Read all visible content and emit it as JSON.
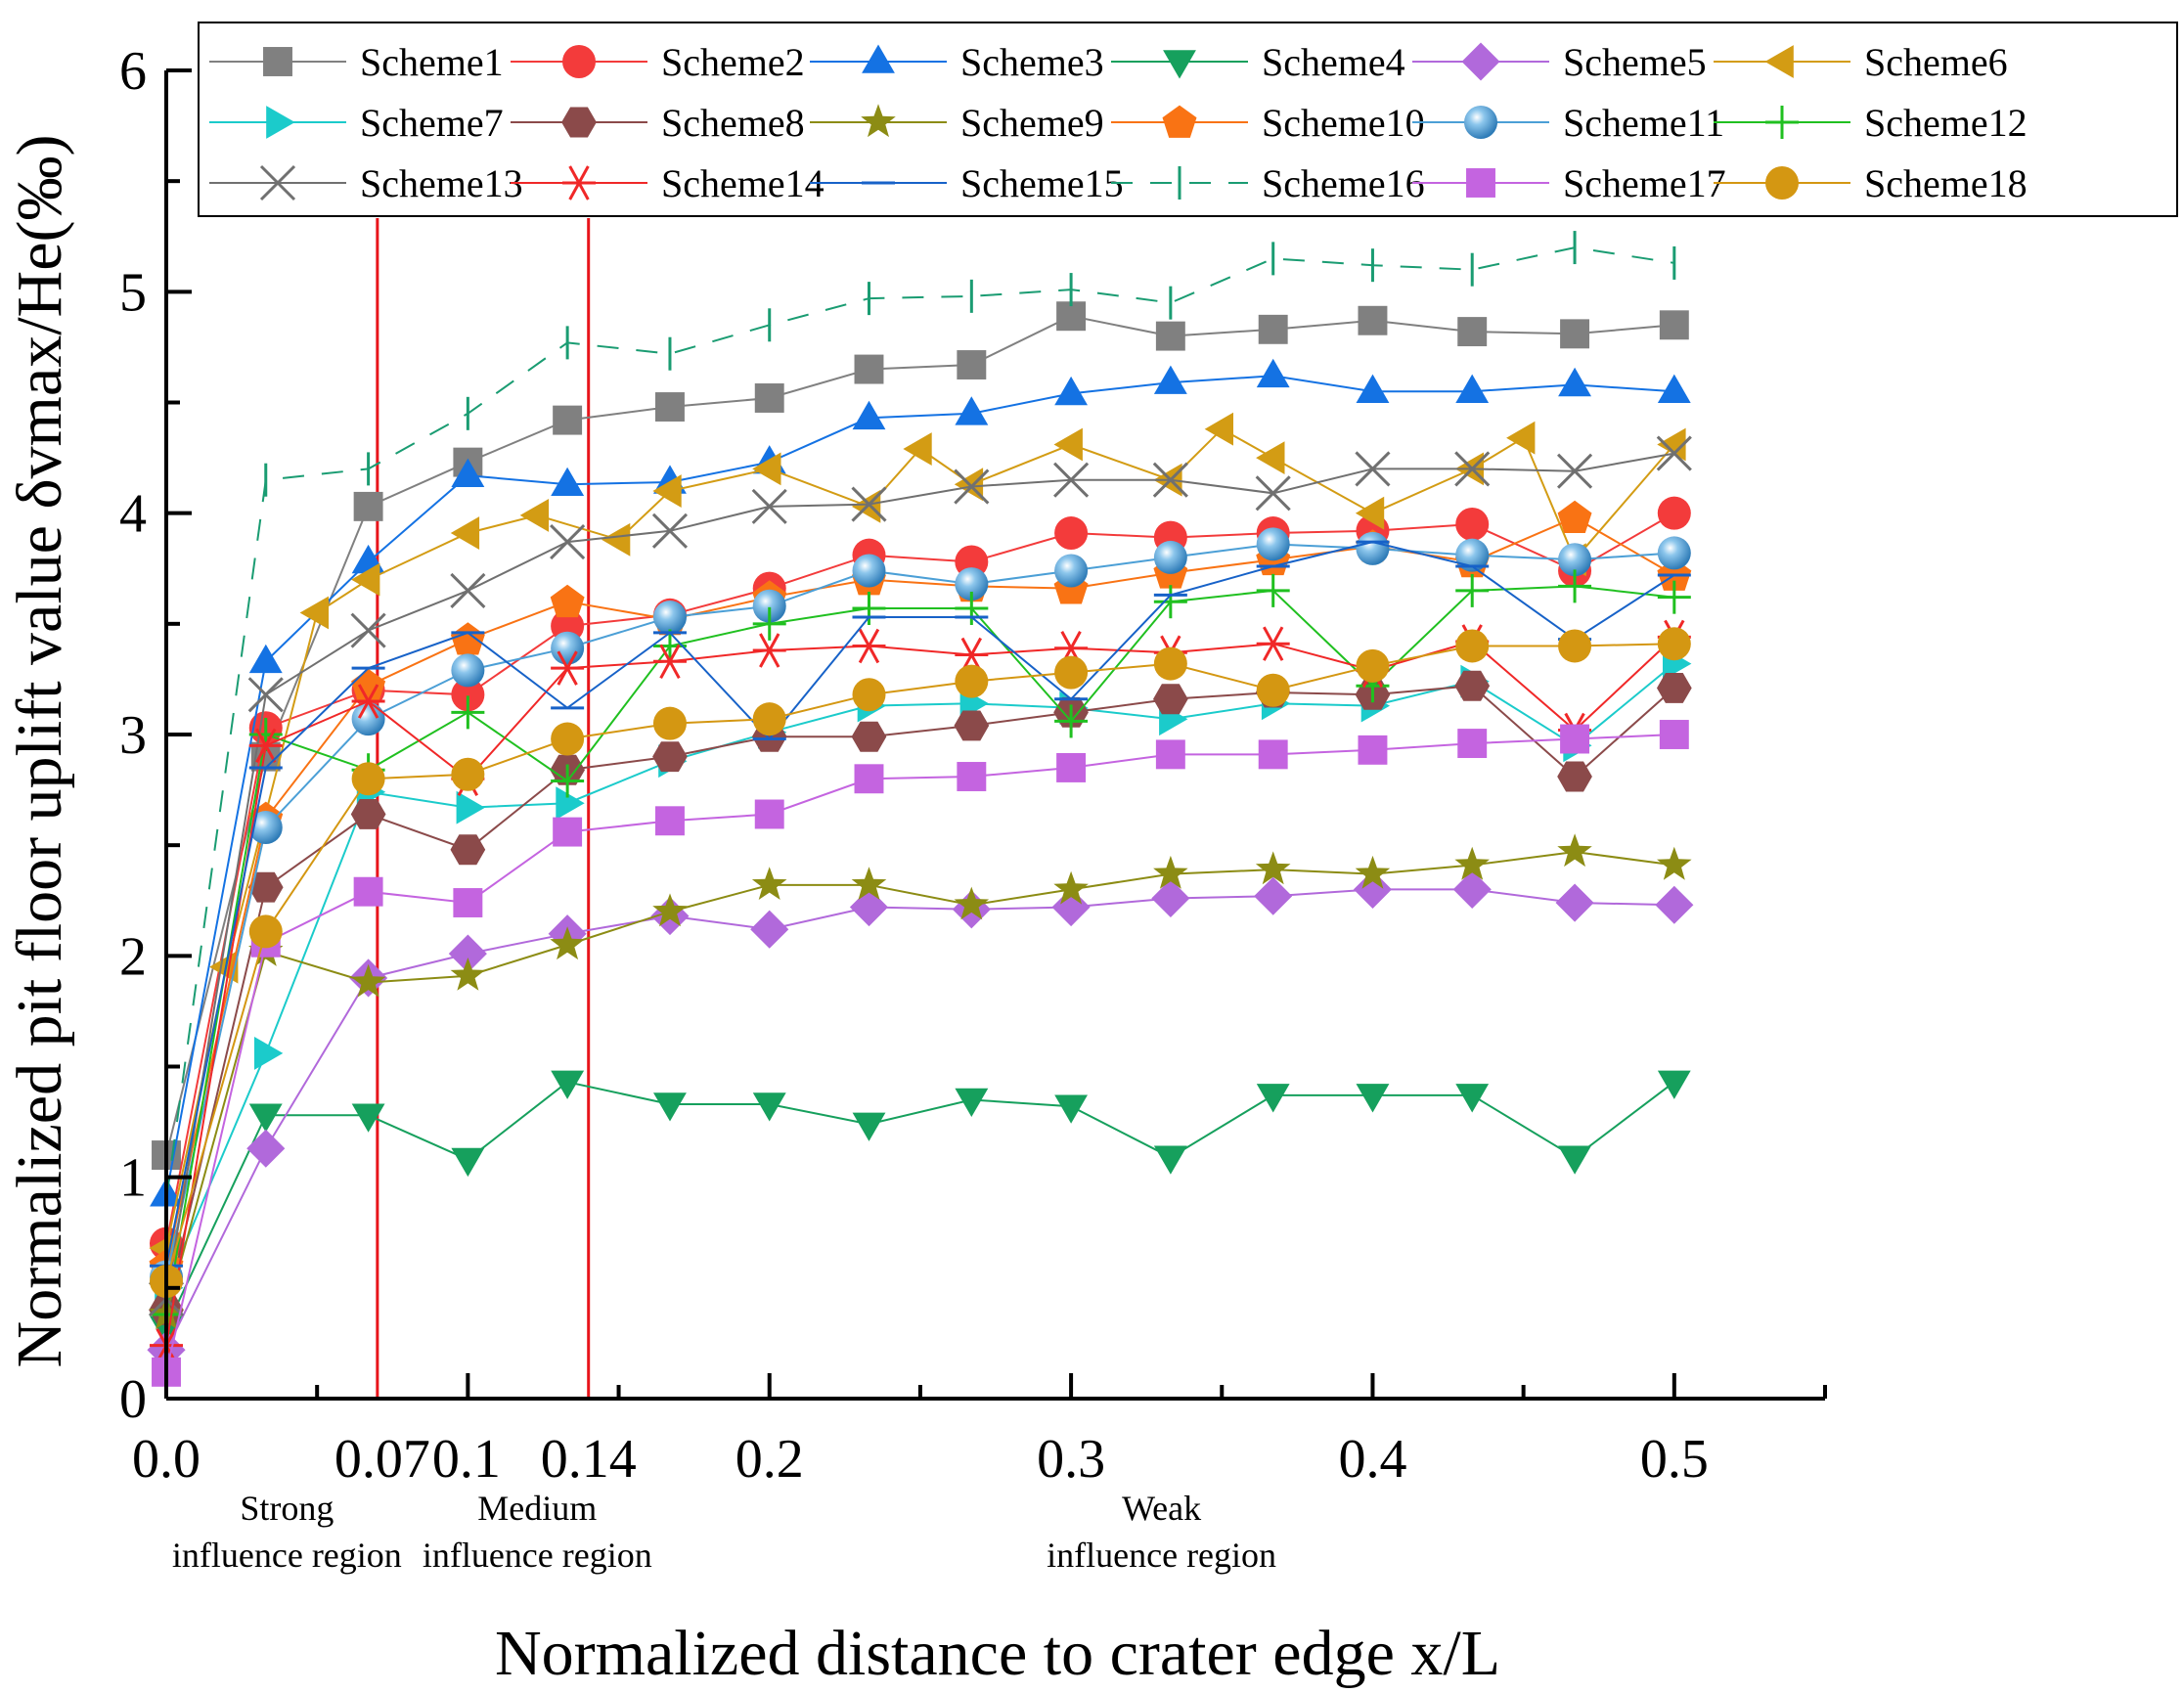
{
  "chart_data": {
    "type": "line",
    "xlabel": "Normalized distance to crater edge x/L",
    "ylabel": "Normalized pit floor uplift value δvmax/He(‰)",
    "xlim": [
      0.0,
      0.55
    ],
    "ylim": [
      0,
      6
    ],
    "x_ticks": [
      0.0,
      0.07,
      0.1,
      0.14,
      0.2,
      0.3,
      0.4,
      0.5
    ],
    "x_tick_labels": [
      "0.0",
      "0.07",
      "0.1",
      "0.14",
      "0.2",
      "0.3",
      "0.4",
      "0.5"
    ],
    "y_ticks": [
      0,
      1,
      2,
      3,
      4,
      5,
      6
    ],
    "y_tick_labels": [
      "0",
      "1",
      "2",
      "3",
      "4",
      "5",
      "6"
    ],
    "grid": false,
    "legend_position": "top",
    "boundary_lines": {
      "x": [
        0.07,
        0.14
      ],
      "color": "#e8141b"
    },
    "region_labels": [
      {
        "x": 0.04,
        "lines": [
          "Strong",
          "influence region"
        ]
      },
      {
        "x": 0.123,
        "lines": [
          "Medium",
          "influence region"
        ]
      },
      {
        "x": 0.33,
        "lines": [
          "Weak",
          "influence region"
        ]
      }
    ],
    "x": [
      0.0,
      0.033,
      0.067,
      0.1,
      0.133,
      0.167,
      0.2,
      0.233,
      0.267,
      0.3,
      0.333,
      0.367,
      0.4,
      0.433,
      0.467,
      0.5
    ],
    "series": [
      {
        "name": "Scheme1",
        "color": "#808080",
        "marker": "square",
        "x": [
          0.0,
          0.033,
          0.067,
          0.1,
          0.133,
          0.167,
          0.2,
          0.233,
          0.267,
          0.3,
          0.333,
          0.367,
          0.4,
          0.433,
          0.467,
          0.5
        ],
        "values": [
          1.1,
          2.9,
          4.03,
          4.23,
          4.42,
          4.48,
          4.52,
          4.65,
          4.67,
          4.89,
          4.8,
          4.83,
          4.87,
          4.82,
          4.81,
          4.85
        ]
      },
      {
        "name": "Scheme2",
        "color": "#f33b3b",
        "marker": "circle",
        "x": [
          0.0,
          0.033,
          0.067,
          0.1,
          0.133,
          0.167,
          0.2,
          0.233,
          0.267,
          0.3,
          0.333,
          0.367,
          0.4,
          0.433,
          0.467,
          0.5
        ],
        "values": [
          0.7,
          3.03,
          3.2,
          3.18,
          3.49,
          3.54,
          3.66,
          3.81,
          3.78,
          3.91,
          3.89,
          3.91,
          3.92,
          3.95,
          3.74,
          4.0
        ]
      },
      {
        "name": "Scheme3",
        "color": "#1472e3",
        "marker": "triangle-up",
        "x": [
          0.0,
          0.033,
          0.067,
          0.1,
          0.133,
          0.167,
          0.2,
          0.233,
          0.267,
          0.3,
          0.333,
          0.367,
          0.4,
          0.433,
          0.467,
          0.5
        ],
        "values": [
          0.92,
          3.33,
          3.78,
          4.17,
          4.13,
          4.14,
          4.23,
          4.43,
          4.45,
          4.54,
          4.59,
          4.62,
          4.55,
          4.55,
          4.58,
          4.55
        ]
      },
      {
        "name": "Scheme4",
        "color": "#16a05d",
        "marker": "triangle-down",
        "x": [
          0.0,
          0.033,
          0.067,
          0.1,
          0.133,
          0.167,
          0.2,
          0.233,
          0.267,
          0.3,
          0.333,
          0.367,
          0.4,
          0.433,
          0.467,
          0.5
        ],
        "values": [
          0.32,
          1.28,
          1.28,
          1.08,
          1.43,
          1.33,
          1.33,
          1.24,
          1.35,
          1.32,
          1.09,
          1.37,
          1.37,
          1.37,
          1.09,
          1.43
        ]
      },
      {
        "name": "Scheme5",
        "color": "#b169db",
        "marker": "diamond",
        "x": [
          0.0,
          0.033,
          0.067,
          0.1,
          0.133,
          0.167,
          0.2,
          0.233,
          0.267,
          0.3,
          0.333,
          0.367,
          0.4,
          0.433,
          0.467,
          0.5
        ],
        "values": [
          0.22,
          1.13,
          1.9,
          2.01,
          2.1,
          2.18,
          2.12,
          2.22,
          2.21,
          2.22,
          2.26,
          2.27,
          2.3,
          2.3,
          2.24,
          2.23
        ]
      },
      {
        "name": "Scheme6",
        "color": "#d39c14",
        "marker": "triangle-left",
        "x": [
          0.0,
          0.02,
          0.05,
          0.067,
          0.1,
          0.123,
          0.15,
          0.167,
          0.2,
          0.233,
          0.25,
          0.267,
          0.3,
          0.333,
          0.35,
          0.367,
          0.4,
          0.433,
          0.45,
          0.467,
          0.5
        ],
        "values": [
          0.68,
          1.95,
          3.55,
          3.7,
          3.91,
          3.99,
          3.88,
          4.1,
          4.2,
          4.03,
          4.29,
          4.13,
          4.31,
          4.15,
          4.38,
          4.25,
          4.0,
          4.2,
          4.34,
          3.79,
          4.31
        ]
      },
      {
        "name": "Scheme7",
        "color": "#1bcbcb",
        "marker": "triangle-right",
        "x": [
          0.0,
          0.033,
          0.067,
          0.1,
          0.133,
          0.167,
          0.2,
          0.233,
          0.267,
          0.3,
          0.333,
          0.367,
          0.4,
          0.433,
          0.467,
          0.5
        ],
        "values": [
          0.5,
          1.56,
          2.74,
          2.67,
          2.69,
          2.88,
          3.01,
          3.13,
          3.14,
          3.12,
          3.07,
          3.14,
          3.13,
          3.24,
          2.95,
          3.32
        ]
      },
      {
        "name": "Scheme8",
        "color": "#8b4a4a",
        "marker": "hexagon",
        "x": [
          0.0,
          0.033,
          0.067,
          0.1,
          0.133,
          0.167,
          0.2,
          0.233,
          0.267,
          0.3,
          0.333,
          0.367,
          0.4,
          0.433,
          0.467,
          0.5
        ],
        "values": [
          0.4,
          2.31,
          2.64,
          2.48,
          2.84,
          2.9,
          2.99,
          2.99,
          3.04,
          3.1,
          3.16,
          3.19,
          3.18,
          3.22,
          2.81,
          3.21
        ]
      },
      {
        "name": "Scheme9",
        "color": "#8c8c14",
        "marker": "star",
        "x": [
          0.0,
          0.033,
          0.067,
          0.1,
          0.133,
          0.167,
          0.2,
          0.233,
          0.267,
          0.3,
          0.333,
          0.367,
          0.4,
          0.433,
          0.467,
          0.5
        ],
        "values": [
          0.38,
          2.02,
          1.88,
          1.91,
          2.05,
          2.2,
          2.32,
          2.32,
          2.23,
          2.3,
          2.37,
          2.39,
          2.37,
          2.41,
          2.47,
          2.41
        ]
      },
      {
        "name": "Scheme10",
        "color": "#f97314",
        "marker": "pentagon",
        "x": [
          0.0,
          0.033,
          0.067,
          0.1,
          0.133,
          0.167,
          0.2,
          0.233,
          0.267,
          0.3,
          0.333,
          0.367,
          0.4,
          0.433,
          0.467,
          0.5
        ],
        "values": [
          0.6,
          2.62,
          3.22,
          3.43,
          3.6,
          3.52,
          3.62,
          3.7,
          3.67,
          3.66,
          3.73,
          3.79,
          3.85,
          3.78,
          3.98,
          3.72
        ]
      },
      {
        "name": "Scheme11",
        "color": "#4b9fd6",
        "marker": "sphere",
        "x": [
          0.0,
          0.033,
          0.067,
          0.1,
          0.133,
          0.167,
          0.2,
          0.233,
          0.267,
          0.3,
          0.333,
          0.367,
          0.4,
          0.433,
          0.467,
          0.5
        ],
        "values": [
          0.55,
          2.58,
          3.07,
          3.29,
          3.39,
          3.53,
          3.58,
          3.74,
          3.68,
          3.74,
          3.8,
          3.86,
          3.84,
          3.81,
          3.79,
          3.82
        ]
      },
      {
        "name": "Scheme12",
        "color": "#20c020",
        "marker": "plus",
        "x": [
          0.0,
          0.033,
          0.067,
          0.1,
          0.133,
          0.167,
          0.2,
          0.233,
          0.267,
          0.3,
          0.333,
          0.367,
          0.4,
          0.433,
          0.467,
          0.5
        ],
        "values": [
          0.38,
          3.0,
          2.84,
          3.1,
          2.79,
          3.4,
          3.5,
          3.57,
          3.57,
          3.06,
          3.6,
          3.65,
          3.22,
          3.65,
          3.67,
          3.62
        ]
      },
      {
        "name": "Scheme13",
        "color": "#707070",
        "marker": "x",
        "x": [
          0.0,
          0.033,
          0.067,
          0.1,
          0.133,
          0.167,
          0.2,
          0.233,
          0.267,
          0.3,
          0.333,
          0.367,
          0.4,
          0.433,
          0.467,
          0.5
        ],
        "values": [
          0.45,
          3.18,
          3.47,
          3.65,
          3.87,
          3.92,
          4.03,
          4.04,
          4.12,
          4.15,
          4.15,
          4.09,
          4.2,
          4.2,
          4.19,
          4.27
        ]
      },
      {
        "name": "Scheme14",
        "color": "#f02828",
        "marker": "asterisk",
        "x": [
          0.0,
          0.033,
          0.067,
          0.1,
          0.133,
          0.167,
          0.2,
          0.233,
          0.267,
          0.3,
          0.333,
          0.367,
          0.4,
          0.433,
          0.467,
          0.5
        ],
        "values": [
          0.24,
          2.95,
          3.15,
          2.8,
          3.3,
          3.33,
          3.38,
          3.4,
          3.36,
          3.39,
          3.37,
          3.41,
          3.29,
          3.42,
          3.02,
          3.44
        ]
      },
      {
        "name": "Scheme15",
        "color": "#1762c8",
        "marker": "hline",
        "x": [
          0.0,
          0.033,
          0.067,
          0.1,
          0.133,
          0.167,
          0.2,
          0.233,
          0.267,
          0.3,
          0.333,
          0.367,
          0.4,
          0.433,
          0.467,
          0.5
        ],
        "values": [
          0.6,
          2.85,
          3.3,
          3.46,
          3.12,
          3.46,
          2.98,
          3.53,
          3.53,
          3.16,
          3.63,
          3.76,
          3.87,
          3.76,
          3.43,
          3.72
        ]
      },
      {
        "name": "Scheme16",
        "color": "#1a9c72",
        "marker": "vline",
        "x": [
          0.0,
          0.033,
          0.067,
          0.1,
          0.133,
          0.167,
          0.2,
          0.233,
          0.267,
          0.3,
          0.333,
          0.367,
          0.4,
          0.433,
          0.467,
          0.5
        ],
        "values": [
          0.9,
          4.15,
          4.2,
          4.45,
          4.77,
          4.72,
          4.85,
          4.97,
          4.98,
          5.01,
          4.95,
          5.15,
          5.12,
          5.1,
          5.2,
          5.13
        ]
      },
      {
        "name": "Scheme17",
        "color": "#c464e0",
        "marker": "square",
        "x": [
          0.0,
          0.033,
          0.067,
          0.1,
          0.133,
          0.167,
          0.2,
          0.233,
          0.267,
          0.3,
          0.333,
          0.367,
          0.4,
          0.433,
          0.467,
          0.5
        ],
        "values": [
          0.12,
          2.06,
          2.29,
          2.24,
          2.56,
          2.61,
          2.64,
          2.8,
          2.81,
          2.85,
          2.91,
          2.91,
          2.93,
          2.96,
          2.98,
          3.0
        ]
      },
      {
        "name": "Scheme18",
        "color": "#d49712",
        "marker": "circle",
        "x": [
          0.0,
          0.033,
          0.067,
          0.1,
          0.133,
          0.167,
          0.2,
          0.233,
          0.267,
          0.3,
          0.333,
          0.367,
          0.4,
          0.433,
          0.467,
          0.5
        ],
        "values": [
          0.53,
          2.11,
          2.8,
          2.82,
          2.98,
          3.05,
          3.07,
          3.18,
          3.24,
          3.28,
          3.32,
          3.2,
          3.31,
          3.4,
          3.4,
          3.41
        ]
      }
    ]
  }
}
